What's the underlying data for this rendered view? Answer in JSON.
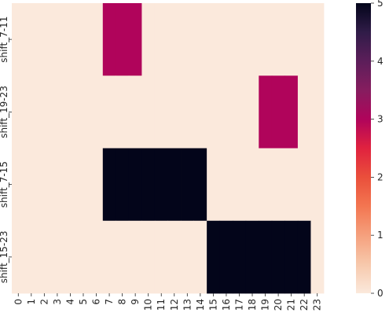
{
  "chart_data": {
    "type": "heatmap",
    "rows": [
      "shift_7-11",
      "shift_19-23",
      "shift_7-15",
      "shift_15-23"
    ],
    "columns": [
      "0",
      "1",
      "2",
      "3",
      "4",
      "5",
      "6",
      "7",
      "8",
      "9",
      "10",
      "11",
      "12",
      "13",
      "14",
      "15",
      "16",
      "17",
      "18",
      "19",
      "20",
      "21",
      "22",
      "23"
    ],
    "values": [
      [
        0,
        0,
        0,
        0,
        0,
        0,
        0,
        3,
        3,
        3,
        0,
        0,
        0,
        0,
        0,
        0,
        0,
        0,
        0,
        0,
        0,
        0,
        0,
        0
      ],
      [
        0,
        0,
        0,
        0,
        0,
        0,
        0,
        0,
        0,
        0,
        0,
        0,
        0,
        0,
        0,
        0,
        0,
        0,
        0,
        3,
        3,
        3,
        0,
        0
      ],
      [
        0,
        0,
        0,
        0,
        0,
        0,
        0,
        5,
        5,
        5,
        5,
        5,
        5,
        5,
        5,
        0,
        0,
        0,
        0,
        0,
        0,
        0,
        0,
        0
      ],
      [
        0,
        0,
        0,
        0,
        0,
        0,
        0,
        0,
        0,
        0,
        0,
        0,
        0,
        0,
        0,
        5,
        5,
        5,
        5,
        5,
        5,
        5,
        5,
        0
      ]
    ],
    "colorbar": {
      "min": 0,
      "max": 5,
      "ticks": [
        "0",
        "1",
        "2",
        "3",
        "4",
        "5"
      ],
      "colormap": "rocket_r",
      "colors": {
        "0": "#fbe9dc",
        "3": "#b0045b",
        "5": "#03051a"
      }
    },
    "title": "",
    "xlabel": "",
    "ylabel": ""
  }
}
